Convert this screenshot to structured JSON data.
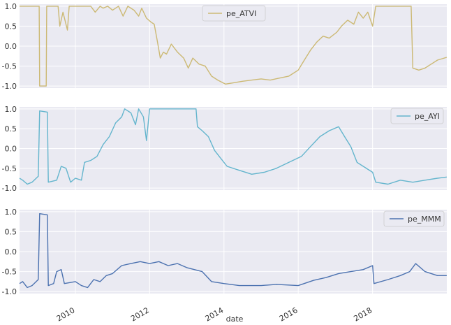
{
  "chart_data": {
    "type": "line",
    "xlabel": "date",
    "x_range": [
      "2008-07-01",
      "2020-01-01"
    ],
    "x_tick_labels": [
      "2010",
      "2012",
      "2014",
      "2016",
      "2018"
    ],
    "y_tick_labels": [
      "1.0",
      "0.5",
      "0.0",
      "-0.5",
      "-1.0"
    ],
    "ylim": [
      -1.05,
      1.05
    ],
    "grid": true,
    "legend_placement": "top-right (upper-center in first panel)",
    "panels": [
      {
        "series": [
          {
            "name": "pe_ATVI",
            "color": "#ccb974",
            "points": [
              [
                "2008-07-01",
                1.0
              ],
              [
                "2008-11-01",
                1.0
              ],
              [
                "2009-01-10",
                1.0
              ],
              [
                "2009-01-15",
                -1.0
              ],
              [
                "2009-03-20",
                -1.0
              ],
              [
                "2009-03-25",
                1.0
              ],
              [
                "2009-07-15",
                1.0
              ],
              [
                "2009-08-01",
                0.5
              ],
              [
                "2009-09-01",
                0.85
              ],
              [
                "2009-10-15",
                0.4
              ],
              [
                "2009-11-01",
                1.0
              ],
              [
                "2010-06-01",
                1.0
              ],
              [
                "2010-07-15",
                0.85
              ],
              [
                "2010-09-01",
                1.0
              ],
              [
                "2010-10-01",
                0.95
              ],
              [
                "2010-11-15",
                1.0
              ],
              [
                "2011-01-01",
                0.9
              ],
              [
                "2011-03-01",
                1.0
              ],
              [
                "2011-04-15",
                0.75
              ],
              [
                "2011-06-01",
                1.0
              ],
              [
                "2011-08-01",
                0.9
              ],
              [
                "2011-09-15",
                0.75
              ],
              [
                "2011-10-15",
                0.95
              ],
              [
                "2011-12-01",
                0.7
              ],
              [
                "2012-01-15",
                0.6
              ],
              [
                "2012-02-15",
                0.55
              ],
              [
                "2012-03-15",
                0.15
              ],
              [
                "2012-04-15",
                -0.3
              ],
              [
                "2012-05-15",
                -0.15
              ],
              [
                "2012-06-15",
                -0.2
              ],
              [
                "2012-08-01",
                0.05
              ],
              [
                "2012-10-01",
                -0.15
              ],
              [
                "2012-12-01",
                -0.3
              ],
              [
                "2013-01-15",
                -0.55
              ],
              [
                "2013-03-01",
                -0.3
              ],
              [
                "2013-05-01",
                -0.45
              ],
              [
                "2013-07-01",
                -0.5
              ],
              [
                "2013-09-01",
                -0.75
              ],
              [
                "2013-11-01",
                -0.85
              ],
              [
                "2014-01-15",
                -0.95
              ],
              [
                "2014-04-01",
                -0.92
              ],
              [
                "2014-07-01",
                -0.88
              ],
              [
                "2014-10-01",
                -0.85
              ],
              [
                "2015-01-01",
                -0.82
              ],
              [
                "2015-04-01",
                -0.85
              ],
              [
                "2015-07-01",
                -0.8
              ],
              [
                "2015-10-01",
                -0.75
              ],
              [
                "2016-01-01",
                -0.6
              ],
              [
                "2016-03-01",
                -0.35
              ],
              [
                "2016-05-01",
                -0.1
              ],
              [
                "2016-07-01",
                0.1
              ],
              [
                "2016-09-01",
                0.25
              ],
              [
                "2016-11-01",
                0.2
              ],
              [
                "2017-01-15",
                0.35
              ],
              [
                "2017-03-01",
                0.5
              ],
              [
                "2017-05-01",
                0.65
              ],
              [
                "2017-07-01",
                0.55
              ],
              [
                "2017-08-15",
                0.85
              ],
              [
                "2017-10-01",
                0.7
              ],
              [
                "2017-11-15",
                0.85
              ],
              [
                "2018-01-01",
                0.5
              ],
              [
                "2018-02-01",
                1.0
              ],
              [
                "2019-01-15",
                1.0
              ],
              [
                "2019-02-01",
                -0.55
              ],
              [
                "2019-04-01",
                -0.6
              ],
              [
                "2019-06-01",
                -0.55
              ],
              [
                "2019-08-01",
                -0.45
              ],
              [
                "2019-10-01",
                -0.35
              ],
              [
                "2019-12-31",
                -0.28
              ]
            ]
          }
        ]
      },
      {
        "series": [
          {
            "name": "pe_AYI",
            "color": "#64b5cd",
            "points": [
              [
                "2008-07-01",
                -0.75
              ],
              [
                "2008-08-01",
                -0.8
              ],
              [
                "2008-09-15",
                -0.9
              ],
              [
                "2008-11-01",
                -0.85
              ],
              [
                "2009-01-01",
                -0.7
              ],
              [
                "2009-01-15",
                0.95
              ],
              [
                "2009-04-01",
                0.92
              ],
              [
                "2009-04-10",
                -0.85
              ],
              [
                "2009-07-01",
                -0.8
              ],
              [
                "2009-08-15",
                -0.45
              ],
              [
                "2009-10-01",
                -0.5
              ],
              [
                "2009-11-15",
                -0.85
              ],
              [
                "2010-01-01",
                -0.75
              ],
              [
                "2010-03-01",
                -0.8
              ],
              [
                "2010-04-01",
                -0.35
              ],
              [
                "2010-06-01",
                -0.3
              ],
              [
                "2010-08-01",
                -0.2
              ],
              [
                "2010-10-01",
                0.1
              ],
              [
                "2010-12-01",
                0.3
              ],
              [
                "2011-02-01",
                0.65
              ],
              [
                "2011-04-01",
                0.8
              ],
              [
                "2011-05-01",
                1.0
              ],
              [
                "2011-07-01",
                0.9
              ],
              [
                "2011-08-15",
                0.6
              ],
              [
                "2011-09-15",
                1.0
              ],
              [
                "2011-11-01",
                0.8
              ],
              [
                "2011-12-01",
                0.2
              ],
              [
                "2012-01-01",
                1.0
              ],
              [
                "2013-04-01",
                1.0
              ],
              [
                "2013-04-15",
                0.55
              ],
              [
                "2013-06-01",
                0.45
              ],
              [
                "2013-08-01",
                0.3
              ],
              [
                "2013-10-01",
                -0.05
              ],
              [
                "2013-12-01",
                -0.25
              ],
              [
                "2014-02-01",
                -0.45
              ],
              [
                "2014-06-01",
                -0.55
              ],
              [
                "2014-10-01",
                -0.65
              ],
              [
                "2015-02-01",
                -0.6
              ],
              [
                "2015-06-01",
                -0.5
              ],
              [
                "2015-10-01",
                -0.35
              ],
              [
                "2016-02-01",
                -0.2
              ],
              [
                "2016-05-01",
                0.05
              ],
              [
                "2016-08-01",
                0.3
              ],
              [
                "2016-11-01",
                0.45
              ],
              [
                "2017-02-01",
                0.55
              ],
              [
                "2017-04-01",
                0.3
              ],
              [
                "2017-06-01",
                0.05
              ],
              [
                "2017-08-01",
                -0.35
              ],
              [
                "2017-10-01",
                -0.45
              ],
              [
                "2018-01-01",
                -0.6
              ],
              [
                "2018-02-01",
                -0.85
              ],
              [
                "2018-06-01",
                -0.9
              ],
              [
                "2018-10-01",
                -0.8
              ],
              [
                "2019-02-01",
                -0.85
              ],
              [
                "2019-06-01",
                -0.8
              ],
              [
                "2019-10-01",
                -0.75
              ],
              [
                "2019-12-31",
                -0.72
              ]
            ]
          }
        ]
      },
      {
        "series": [
          {
            "name": "pe_MMM",
            "color": "#4c72b0",
            "points": [
              [
                "2008-07-01",
                -0.8
              ],
              [
                "2008-08-01",
                -0.75
              ],
              [
                "2008-09-15",
                -0.9
              ],
              [
                "2008-11-01",
                -0.85
              ],
              [
                "2009-01-01",
                -0.7
              ],
              [
                "2009-01-15",
                0.95
              ],
              [
                "2009-04-01",
                0.92
              ],
              [
                "2009-04-10",
                -0.85
              ],
              [
                "2009-06-01",
                -0.8
              ],
              [
                "2009-07-01",
                -0.5
              ],
              [
                "2009-08-15",
                -0.45
              ],
              [
                "2009-09-15",
                -0.8
              ],
              [
                "2010-01-01",
                -0.75
              ],
              [
                "2010-03-01",
                -0.85
              ],
              [
                "2010-05-01",
                -0.9
              ],
              [
                "2010-07-01",
                -0.7
              ],
              [
                "2010-09-01",
                -0.75
              ],
              [
                "2010-11-01",
                -0.6
              ],
              [
                "2011-01-01",
                -0.55
              ],
              [
                "2011-04-01",
                -0.35
              ],
              [
                "2011-07-01",
                -0.3
              ],
              [
                "2011-10-01",
                -0.25
              ],
              [
                "2012-01-01",
                -0.3
              ],
              [
                "2012-04-01",
                -0.25
              ],
              [
                "2012-07-01",
                -0.35
              ],
              [
                "2012-10-01",
                -0.3
              ],
              [
                "2013-01-01",
                -0.4
              ],
              [
                "2013-06-01",
                -0.5
              ],
              [
                "2013-09-01",
                -0.75
              ],
              [
                "2014-01-01",
                -0.8
              ],
              [
                "2014-06-01",
                -0.85
              ],
              [
                "2015-01-01",
                -0.85
              ],
              [
                "2015-06-01",
                -0.82
              ],
              [
                "2016-01-01",
                -0.85
              ],
              [
                "2016-06-01",
                -0.72
              ],
              [
                "2016-10-01",
                -0.65
              ],
              [
                "2017-02-01",
                -0.55
              ],
              [
                "2017-06-01",
                -0.5
              ],
              [
                "2017-10-01",
                -0.45
              ],
              [
                "2018-01-01",
                -0.35
              ],
              [
                "2018-01-15",
                -0.8
              ],
              [
                "2018-06-01",
                -0.7
              ],
              [
                "2018-10-01",
                -0.6
              ],
              [
                "2019-01-01",
                -0.5
              ],
              [
                "2019-03-01",
                -0.3
              ],
              [
                "2019-06-01",
                -0.5
              ],
              [
                "2019-10-01",
                -0.6
              ],
              [
                "2019-12-31",
                -0.6
              ]
            ]
          }
        ]
      }
    ]
  }
}
